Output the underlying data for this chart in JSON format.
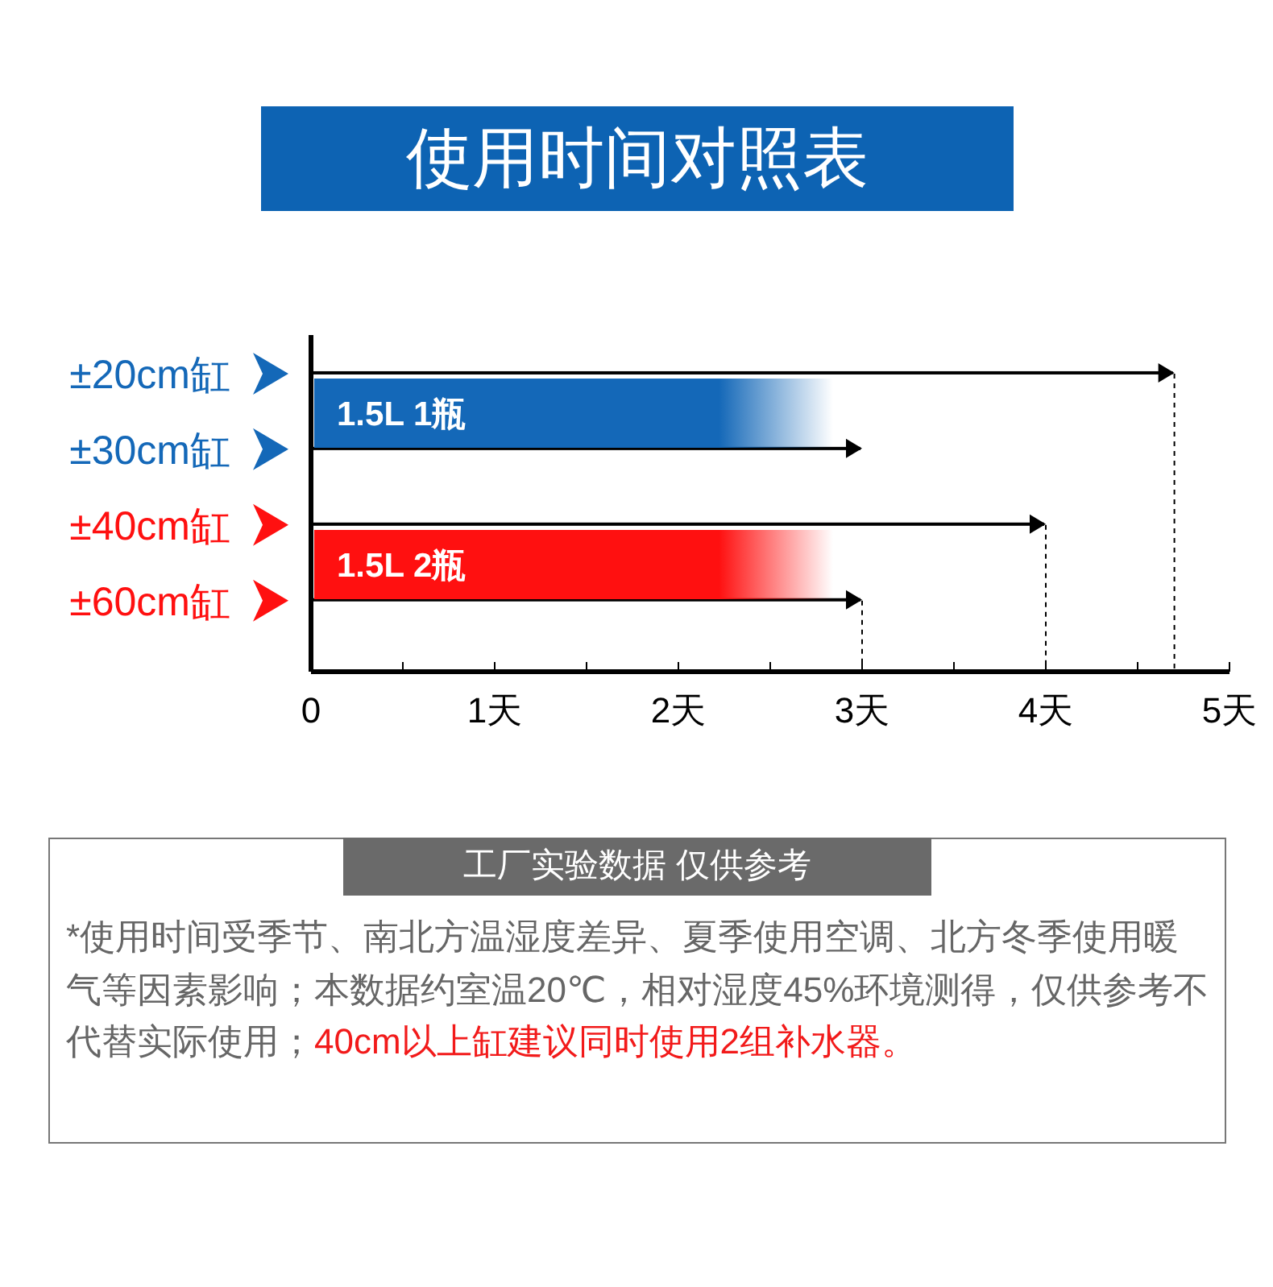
{
  "chart_data": {
    "type": "bar",
    "orientation": "horizontal",
    "title": "使用时间对照表",
    "categories": [
      "±20cm缸",
      "±30cm缸",
      "±40cm缸",
      "±60cm缸"
    ],
    "values": [
      4.7,
      3,
      4,
      3
    ],
    "colors": [
      "#000000",
      "#000000",
      "#000000",
      "#000000"
    ],
    "xlim": [
      0,
      5
    ],
    "xticks": [
      0,
      {
        "value": 0.5,
        "label": null
      },
      {
        "value": 1,
        "label": "1天"
      },
      {
        "value": 1.5,
        "label": null
      },
      {
        "value": 2,
        "label": "2天"
      },
      {
        "value": 2.5,
        "label": null
      },
      {
        "value": 3,
        "label": "3天"
      },
      {
        "value": 3.5,
        "label": null
      },
      {
        "value": 4,
        "label": "4天"
      },
      {
        "value": 4.5,
        "label": null
      },
      {
        "value": 5,
        "label": "5天"
      }
    ],
    "ref_lines": [
      {
        "axis": "x",
        "value": 4.7,
        "line_style": "dashed"
      },
      {
        "axis": "x",
        "value": 3,
        "line_style": "dashed"
      },
      {
        "axis": "x",
        "value": 4,
        "line_style": "dashed"
      }
    ],
    "bands": [
      {
        "axis": "y",
        "from": "±20cm缸",
        "to": "±30cm缸",
        "label": "1.5L 1瓶",
        "color": "#1468b8"
      },
      {
        "axis": "y",
        "from": "±40cm缸",
        "to": "±60cm缸",
        "label": "1.5L 2瓶",
        "color": "#ff1010"
      }
    ],
    "annotations": [
      "工厂实验数据 仅供参考",
      "*使用时间受季节、南北方温湿度差异、夏季使用空调、北方冬季使用暖气等因素影响；本数据约室温20℃，相对湿度45%环境测得，仅供参考不代替实际使用；",
      "40cm以上缸建议同时使用2组补水器。"
    ],
    "grid": false,
    "legend": false
  }
}
